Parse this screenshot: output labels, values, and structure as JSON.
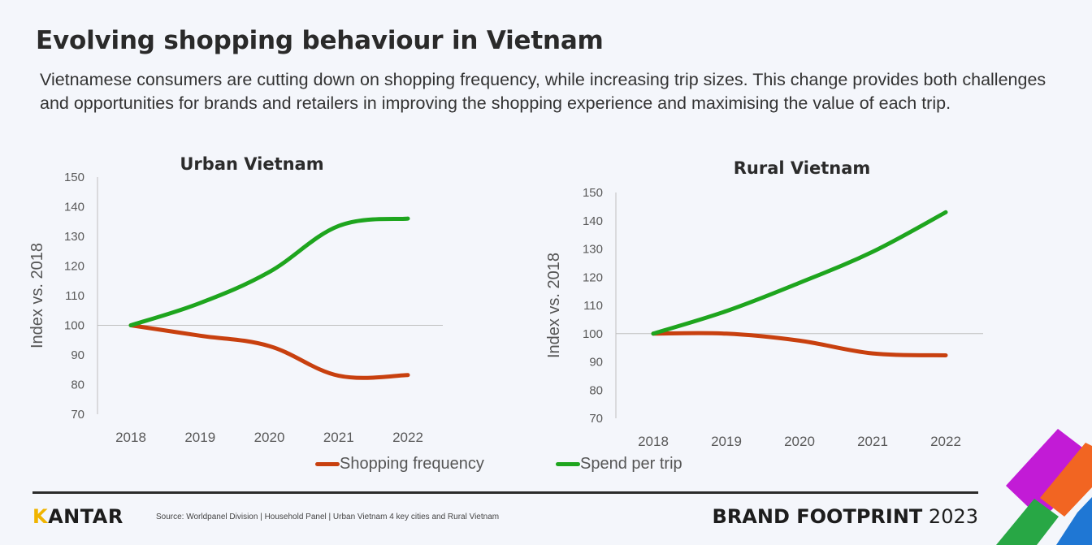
{
  "title": "Evolving shopping behaviour in Vietnam",
  "subtitle": "Vietnamese consumers are cutting down on shopping frequency, while increasing trip sizes. This change provides both challenges and opportunities for brands and retailers in improving the shopping experience and maximising the value of each trip.",
  "legend": {
    "shopping_frequency": "Shopping frequency",
    "spend_per_trip": "Spend per trip"
  },
  "footer": {
    "logo_first": "K",
    "logo_rest": "ANTAR",
    "source": "Source: Worldpanel Division | Household Panel | Urban Vietnam 4 key cities and Rural Vietnam",
    "brand_bold": "BRAND FOOTPRINT",
    "brand_year": "2023"
  },
  "colors": {
    "shopping_frequency": "#c8400f",
    "spend_per_trip": "#1ea51e",
    "axis": "#bfbfbf",
    "tick": "#595959",
    "corner_purple": "#c21bd6",
    "corner_orange": "#f26522",
    "corner_green": "#28a745",
    "corner_blue": "#1f77d4",
    "logo_accent": "#f0b400"
  },
  "chart_data": [
    {
      "type": "line",
      "title": "Urban Vietnam",
      "ylabel": "Index vs. 2018",
      "xlabel": "",
      "categories": [
        "2018",
        "2019",
        "2020",
        "2021",
        "2022"
      ],
      "ylim": [
        70,
        150
      ],
      "yticks": [
        70,
        80,
        90,
        100,
        110,
        120,
        130,
        140,
        150
      ],
      "reference_line": 100,
      "series": [
        {
          "name": "Shopping frequency",
          "values": [
            100,
            96.5,
            93,
            83,
            83.2
          ]
        },
        {
          "name": "Spend per trip",
          "values": [
            100,
            107.5,
            118,
            133.5,
            136
          ]
        }
      ]
    },
    {
      "type": "line",
      "title": "Rural Vietnam",
      "ylabel": "Index vs. 2018",
      "xlabel": "",
      "categories": [
        "2018",
        "2019",
        "2020",
        "2021",
        "2022"
      ],
      "ylim": [
        70,
        150
      ],
      "yticks": [
        70,
        80,
        90,
        100,
        110,
        120,
        130,
        140,
        150
      ],
      "reference_line": 100,
      "series": [
        {
          "name": "Shopping frequency",
          "values": [
            100,
            100,
            97.5,
            93,
            92.3
          ]
        },
        {
          "name": "Spend per trip",
          "values": [
            100,
            108,
            118,
            129,
            143
          ]
        }
      ]
    }
  ]
}
